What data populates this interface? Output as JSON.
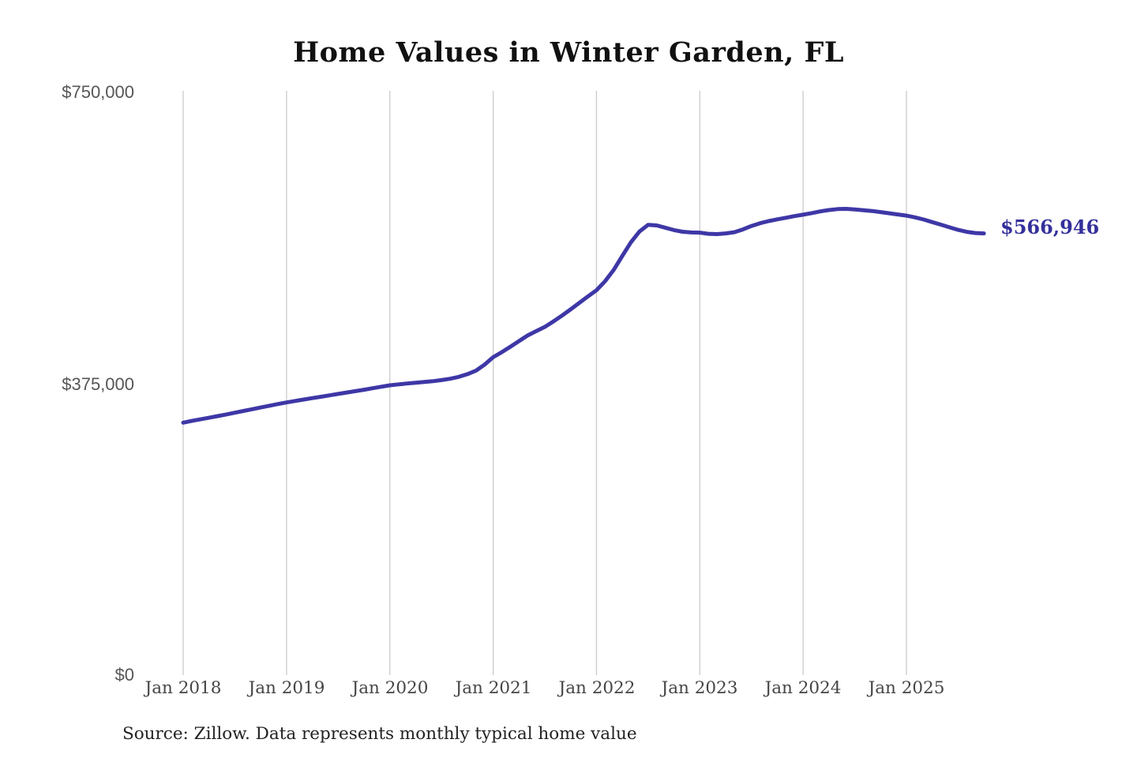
{
  "header": {
    "title": "Home Values in Winter Garden, FL"
  },
  "footer": {
    "source": "Source: Zillow. Data represents monthly typical home value"
  },
  "end_label": {
    "text": "$566,946",
    "value": 566946
  },
  "colors": {
    "line": "#3e37a6",
    "end_label": "#34309b",
    "grid": "#cbcbcb",
    "y_tick_text": "#565656",
    "x_tick_text": "#454545",
    "title_text": "#111111",
    "source_text": "#222222",
    "background": "#ffffff"
  },
  "chart_data": {
    "type": "line",
    "title": "Home Values in Winter Garden, FL",
    "xlabel": "",
    "ylabel": "",
    "ylim": [
      0,
      750000
    ],
    "grid": "vertical-only",
    "legend": "none",
    "series_name": "Typical home value (monthly)",
    "y_tick_labels": [
      "$0",
      "$375,000",
      "$750,000"
    ],
    "y_tick_values": [
      0,
      375000,
      750000
    ],
    "x_tick_labels": [
      "Jan 2018",
      "Jan 2019",
      "Jan 2020",
      "Jan 2021",
      "Jan 2022",
      "Jan 2023",
      "Jan 2024",
      "Jan 2025"
    ],
    "end_annotation": "$566,946",
    "x": [
      "2018-01",
      "2018-02",
      "2018-03",
      "2018-04",
      "2018-05",
      "2018-06",
      "2018-07",
      "2018-08",
      "2018-09",
      "2018-10",
      "2018-11",
      "2018-12",
      "2019-01",
      "2019-02",
      "2019-03",
      "2019-04",
      "2019-05",
      "2019-06",
      "2019-07",
      "2019-08",
      "2019-09",
      "2019-10",
      "2019-11",
      "2019-12",
      "2020-01",
      "2020-02",
      "2020-03",
      "2020-04",
      "2020-05",
      "2020-06",
      "2020-07",
      "2020-08",
      "2020-09",
      "2020-10",
      "2020-11",
      "2020-12",
      "2021-01",
      "2021-02",
      "2021-03",
      "2021-04",
      "2021-05",
      "2021-06",
      "2021-07",
      "2021-08",
      "2021-09",
      "2021-10",
      "2021-11",
      "2021-12",
      "2022-01",
      "2022-02",
      "2022-03",
      "2022-04",
      "2022-05",
      "2022-06",
      "2022-07",
      "2022-08",
      "2022-09",
      "2022-10",
      "2022-11",
      "2022-12",
      "2023-01",
      "2023-02",
      "2023-03",
      "2023-04",
      "2023-05",
      "2023-06",
      "2023-07",
      "2023-08",
      "2023-09",
      "2023-10",
      "2023-11",
      "2023-12",
      "2024-01",
      "2024-02",
      "2024-03",
      "2024-04",
      "2024-05",
      "2024-06",
      "2024-07",
      "2024-08",
      "2024-09",
      "2024-10",
      "2024-11",
      "2024-12",
      "2025-01",
      "2025-02",
      "2025-03",
      "2025-04",
      "2025-05",
      "2025-06",
      "2025-07",
      "2025-08",
      "2025-09",
      "2025-10"
    ],
    "values": [
      324000,
      326200,
      328300,
      330300,
      332400,
      334600,
      336800,
      339000,
      341200,
      343500,
      345700,
      347900,
      350000,
      351900,
      353700,
      355500,
      357300,
      359100,
      360900,
      362700,
      364500,
      366300,
      368200,
      370100,
      372000,
      373200,
      374300,
      375300,
      376200,
      377200,
      378600,
      380400,
      382800,
      386200,
      390800,
      398500,
      408000,
      414500,
      421500,
      428700,
      435900,
      441500,
      447000,
      454000,
      461500,
      469500,
      477800,
      486000,
      494000,
      505500,
      520000,
      538000,
      555500,
      569500,
      578000,
      577200,
      574300,
      571200,
      569100,
      568200,
      568000,
      566500,
      566000,
      567000,
      568500,
      572000,
      576500,
      580000,
      582800,
      585000,
      587000,
      589200,
      591000,
      593000,
      595200,
      597000,
      598200,
      598500,
      597800,
      596800,
      595700,
      594300,
      592800,
      591300,
      589800,
      587500,
      584800,
      581500,
      578200,
      574800,
      571500,
      569000,
      567500,
      566946
    ]
  }
}
